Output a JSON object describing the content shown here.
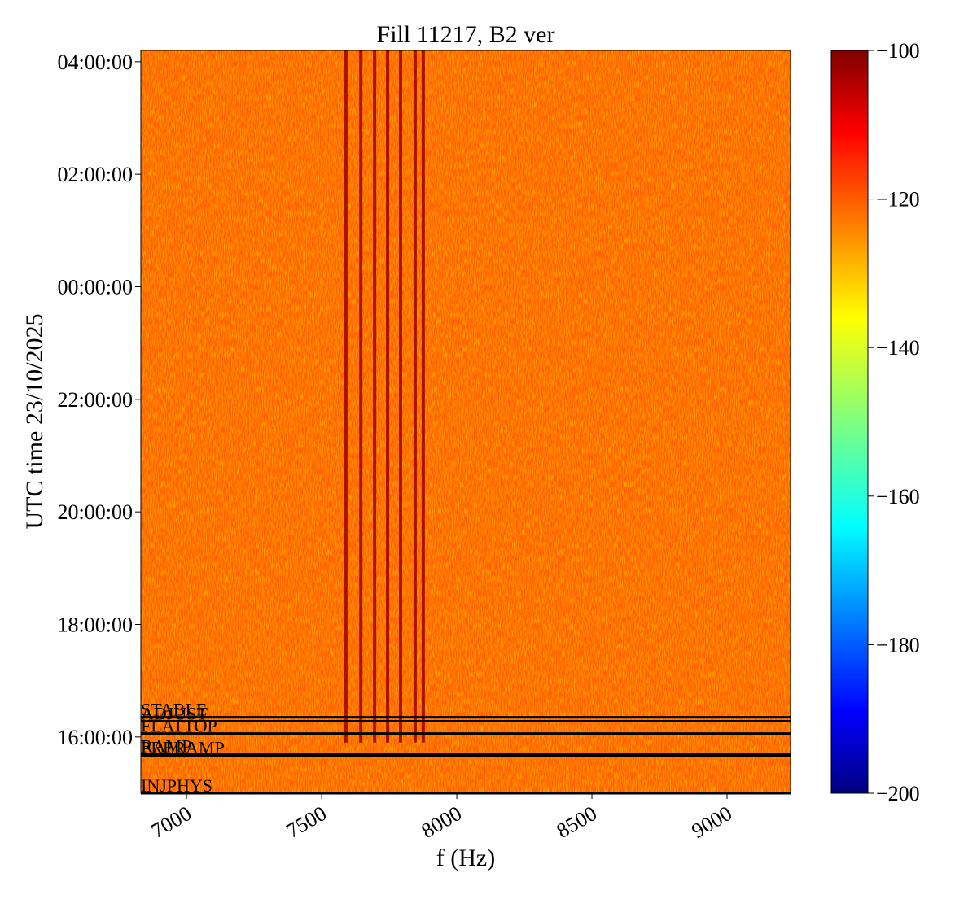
{
  "chart_data": {
    "type": "spectrogram",
    "title": "Fill 11217, B2 ver",
    "xlabel": "f (Hz)",
    "ylabel": "UTC time 23/10/2025",
    "xlim": [
      6831,
      9235
    ],
    "xticks": [
      7000,
      7500,
      8000,
      8500,
      9000
    ],
    "ylim": [
      15.0,
      28.2
    ],
    "yticks": [
      {
        "value": 16,
        "label": "16:00:00"
      },
      {
        "value": 18,
        "label": "18:00:00"
      },
      {
        "value": 20,
        "label": "20:00:00"
      },
      {
        "value": 22,
        "label": "22:00:00"
      },
      {
        "value": 24,
        "label": "00:00:00"
      },
      {
        "value": 26,
        "label": "02:00:00"
      },
      {
        "value": 28,
        "label": "04:00:00"
      }
    ],
    "clim": [
      -200,
      -100
    ],
    "cticks": [
      {
        "value": -200,
        "label": "−200"
      },
      {
        "value": -180,
        "label": "−180"
      },
      {
        "value": -160,
        "label": "−160"
      },
      {
        "value": -140,
        "label": "−140"
      },
      {
        "value": -120,
        "label": "−120"
      },
      {
        "value": -100,
        "label": "−100"
      }
    ],
    "colormap": "jet",
    "background_level": -122,
    "spectral_lines": {
      "frequencies": [
        7590,
        7645,
        7696,
        7744,
        7792,
        7846,
        7876
      ],
      "level": -103,
      "start_time": 15.9
    },
    "markers": [
      {
        "label": "STABLE",
        "time": 16.35
      },
      {
        "label": "ADJUST",
        "time": 16.28
      },
      {
        "label": "FLATTOP",
        "time": 16.06
      },
      {
        "label": "RAMP",
        "time": 15.7
      },
      {
        "label": "PRERAMP",
        "time": 15.67
      },
      {
        "label": "INJPHYS",
        "time": 15.0
      }
    ]
  }
}
